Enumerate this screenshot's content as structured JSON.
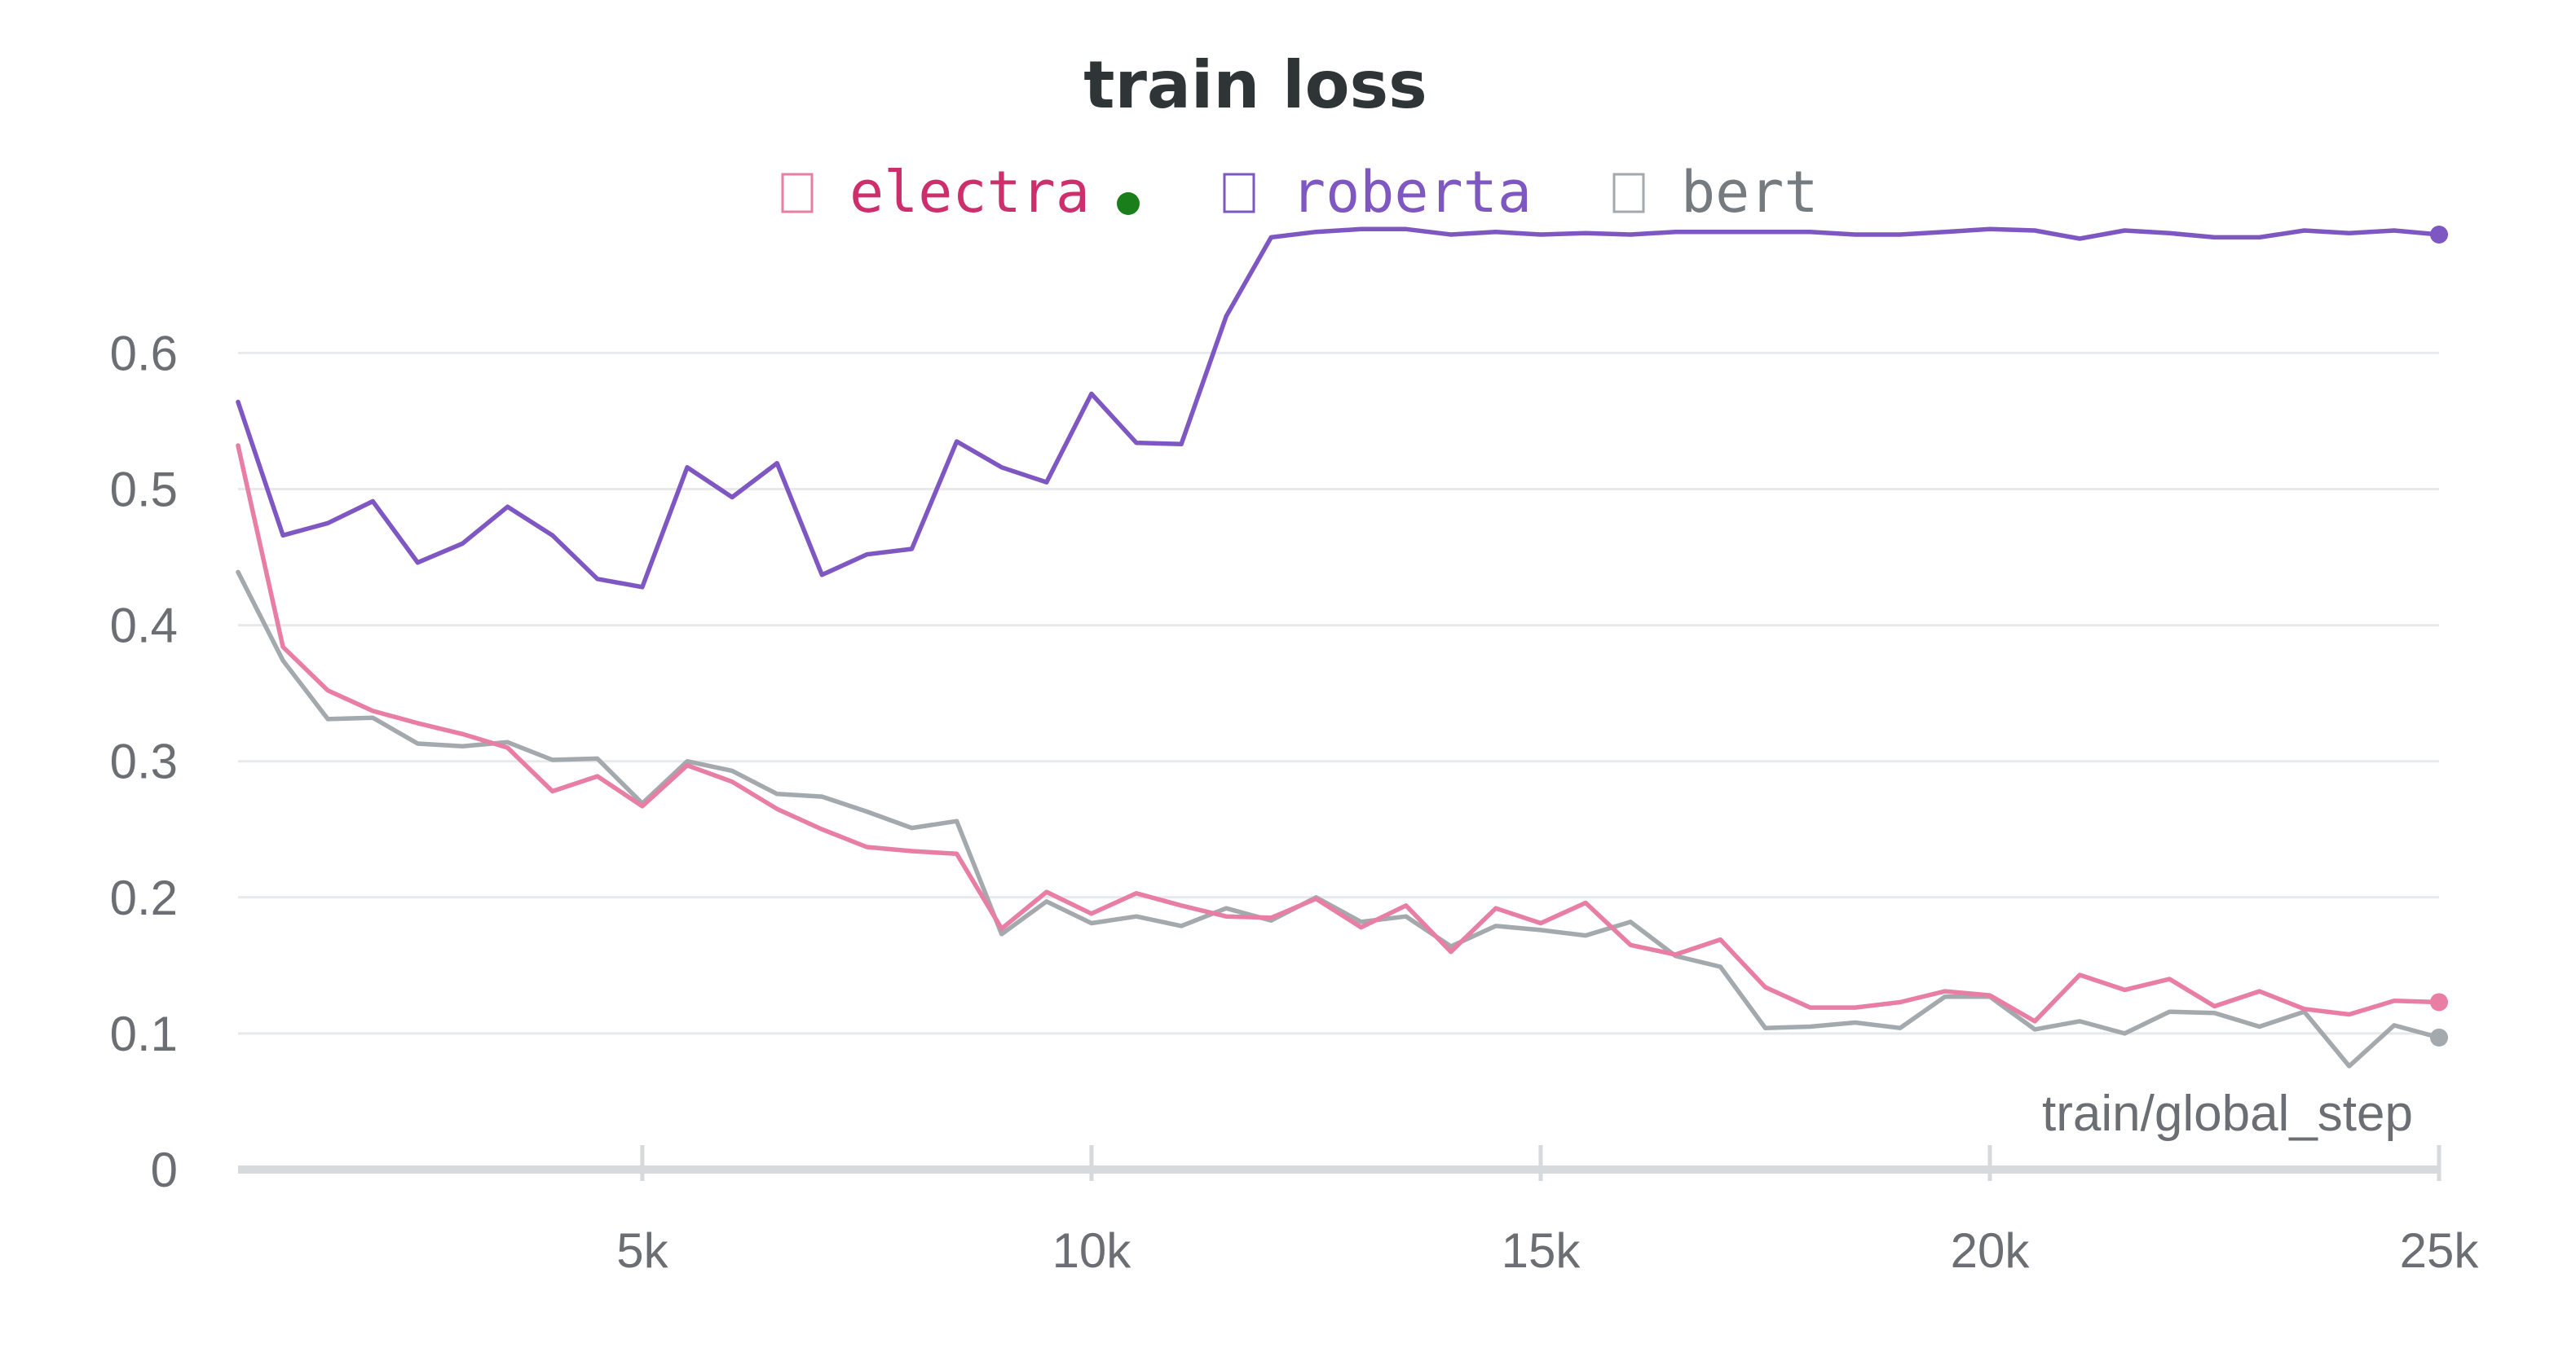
{
  "chart_data": {
    "type": "line",
    "title": "train loss",
    "xlabel": "train/global_step",
    "ylabel": "",
    "xlim": [
      500,
      25000
    ],
    "ylim": [
      0,
      0.69
    ],
    "x_ticks": [
      {
        "value": 5000,
        "label": "5k"
      },
      {
        "value": 10000,
        "label": "10k"
      },
      {
        "value": 15000,
        "label": "15k"
      },
      {
        "value": 20000,
        "label": "20k"
      },
      {
        "value": 25000,
        "label": "25k"
      }
    ],
    "y_ticks": [
      {
        "value": 0,
        "label": "0"
      },
      {
        "value": 0.1,
        "label": "0.1"
      },
      {
        "value": 0.2,
        "label": "0.2"
      },
      {
        "value": 0.3,
        "label": "0.3"
      },
      {
        "value": 0.4,
        "label": "0.4"
      },
      {
        "value": 0.5,
        "label": "0.5"
      },
      {
        "value": 0.6,
        "label": "0.6"
      }
    ],
    "grid": true,
    "legend_position": "top",
    "x": [
      500,
      1000,
      1500,
      2000,
      2500,
      3000,
      3500,
      4000,
      4500,
      5000,
      5500,
      6000,
      6500,
      7000,
      7500,
      8000,
      8500,
      9000,
      9500,
      10000,
      10500,
      11000,
      11500,
      12000,
      12500,
      13000,
      13500,
      14000,
      14500,
      15000,
      15500,
      16000,
      16500,
      17000,
      17500,
      18000,
      18500,
      19000,
      19500,
      20000,
      20500,
      21000,
      21500,
      22000,
      22500,
      23000,
      23500,
      24000,
      24500,
      25000
    ],
    "series": [
      {
        "name": "electra",
        "color": "#e87ea3",
        "label_color": "#cc2f6b",
        "values": [
          0.532,
          0.384,
          0.352,
          0.337,
          0.328,
          0.32,
          0.31,
          0.278,
          0.289,
          0.267,
          0.297,
          0.285,
          0.265,
          0.25,
          0.237,
          0.234,
          0.232,
          0.177,
          0.204,
          0.188,
          0.203,
          0.194,
          0.186,
          0.185,
          0.199,
          0.178,
          0.194,
          0.16,
          0.192,
          0.181,
          0.196,
          0.165,
          0.158,
          0.169,
          0.134,
          0.119,
          0.119,
          0.123,
          0.131,
          0.128,
          0.109,
          0.143,
          0.132,
          0.14,
          0.12,
          0.131,
          0.118,
          0.114,
          0.124,
          0.123
        ]
      },
      {
        "name": "roberta",
        "color": "#7e57c2",
        "label_color": "#7e57c2",
        "values": [
          0.564,
          0.466,
          0.475,
          0.491,
          0.446,
          0.46,
          0.487,
          0.466,
          0.434,
          0.428,
          0.516,
          0.494,
          0.519,
          0.437,
          0.452,
          0.456,
          0.535,
          0.516,
          0.505,
          0.57,
          0.534,
          0.533,
          0.627,
          0.685,
          0.689,
          0.691,
          0.691,
          0.687,
          0.689,
          0.687,
          0.688,
          0.687,
          0.689,
          0.689,
          0.689,
          0.689,
          0.687,
          0.687,
          0.689,
          0.691,
          0.69,
          0.684,
          0.69,
          0.688,
          0.685,
          0.685,
          0.69,
          0.688,
          0.69,
          0.687
        ]
      },
      {
        "name": "bert",
        "color": "#a3a9ac",
        "label_color": "#757b7f",
        "values": [
          0.439,
          0.374,
          0.331,
          0.332,
          0.313,
          0.311,
          0.314,
          0.301,
          0.302,
          0.269,
          0.3,
          0.293,
          0.276,
          0.274,
          0.263,
          0.251,
          0.256,
          0.173,
          0.197,
          0.181,
          0.186,
          0.179,
          0.192,
          0.183,
          0.2,
          0.182,
          0.186,
          0.164,
          0.179,
          0.176,
          0.172,
          0.182,
          0.157,
          0.149,
          0.104,
          0.105,
          0.108,
          0.104,
          0.127,
          0.127,
          0.103,
          0.109,
          0.1,
          0.116,
          0.115,
          0.105,
          0.116,
          0.076,
          0.106,
          0.097
        ]
      }
    ],
    "legend_marker_color": "#1a7f1a"
  }
}
